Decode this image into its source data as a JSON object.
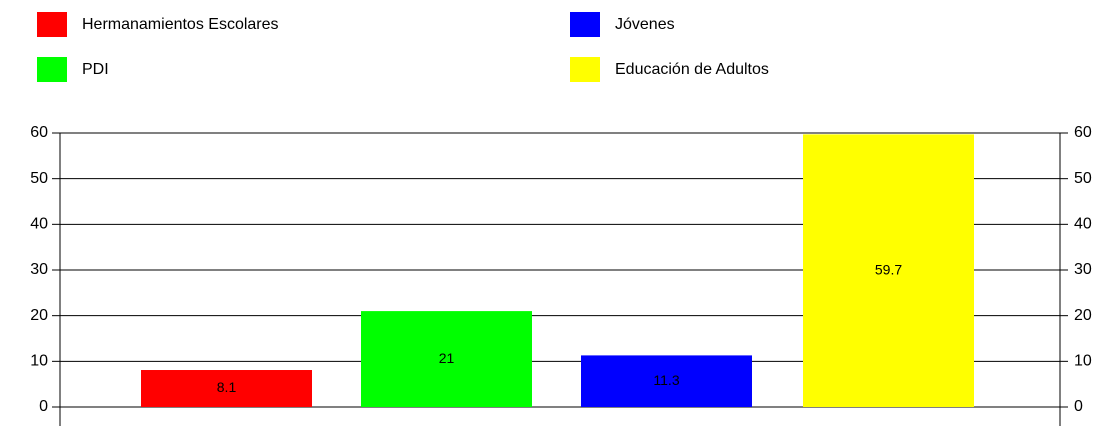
{
  "chart_data": {
    "type": "bar",
    "series": [
      {
        "name": "Hermanamientos Escolares",
        "color": "#ff0000",
        "values": [
          8.1
        ]
      },
      {
        "name": "PDI",
        "color": "#00ff00",
        "values": [
          21
        ]
      },
      {
        "name": "Jóvenes",
        "color": "#0000ff",
        "values": [
          11.3
        ]
      },
      {
        "name": "Educación de Adultos",
        "color": "#ffff00",
        "values": [
          59.7
        ]
      }
    ],
    "ylim": [
      0,
      60
    ],
    "yticks": [
      0,
      10,
      20,
      30,
      40,
      50,
      60
    ],
    "grid": true
  }
}
